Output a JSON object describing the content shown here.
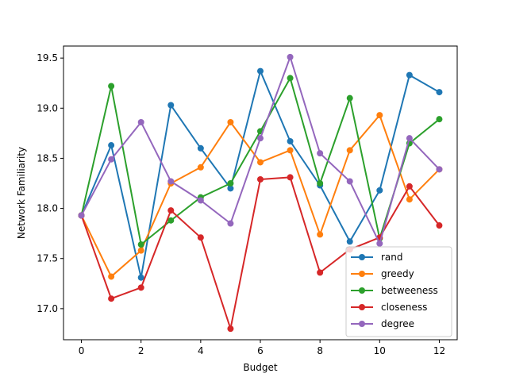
{
  "chart_data": {
    "type": "line",
    "xlabel": "Budget",
    "ylabel": "Network Familiarity",
    "xlim": [
      -0.6,
      12.6
    ],
    "ylim": [
      16.69,
      19.62
    ],
    "xticks": [
      "0",
      "2",
      "4",
      "6",
      "8",
      "10",
      "12"
    ],
    "yticks": [
      "17.0",
      "17.5",
      "18.0",
      "18.5",
      "19.0",
      "19.5"
    ],
    "grid": false,
    "legend_position": "lower-right",
    "x": [
      0,
      1,
      2,
      3,
      4,
      5,
      6,
      7,
      8,
      9,
      10,
      11,
      12
    ],
    "series": [
      {
        "name": "rand",
        "color": "#1f77b4",
        "values": [
          17.93,
          18.63,
          17.31,
          19.03,
          18.6,
          18.2,
          19.37,
          18.67,
          18.23,
          17.67,
          18.18,
          19.33,
          19.16
        ]
      },
      {
        "name": "greedy",
        "color": "#ff7f0e",
        "values": [
          17.93,
          17.32,
          17.58,
          18.25,
          18.41,
          18.86,
          18.46,
          18.58,
          17.74,
          18.58,
          18.93,
          18.09,
          18.39
        ]
      },
      {
        "name": "betweeness",
        "color": "#2ca02c",
        "values": [
          17.93,
          19.22,
          17.64,
          17.88,
          18.11,
          18.25,
          18.77,
          19.3,
          18.25,
          19.1,
          17.7,
          18.65,
          18.89
        ]
      },
      {
        "name": "closeness",
        "color": "#d62728",
        "values": [
          17.93,
          17.1,
          17.21,
          17.98,
          17.71,
          16.8,
          18.29,
          18.31,
          17.36,
          17.59,
          17.71,
          18.22,
          17.83
        ]
      },
      {
        "name": "degree",
        "color": "#9467bd",
        "values": [
          17.93,
          18.49,
          18.86,
          18.27,
          18.08,
          17.85,
          18.7,
          19.51,
          18.55,
          18.27,
          17.65,
          18.7,
          18.39
        ]
      }
    ]
  }
}
